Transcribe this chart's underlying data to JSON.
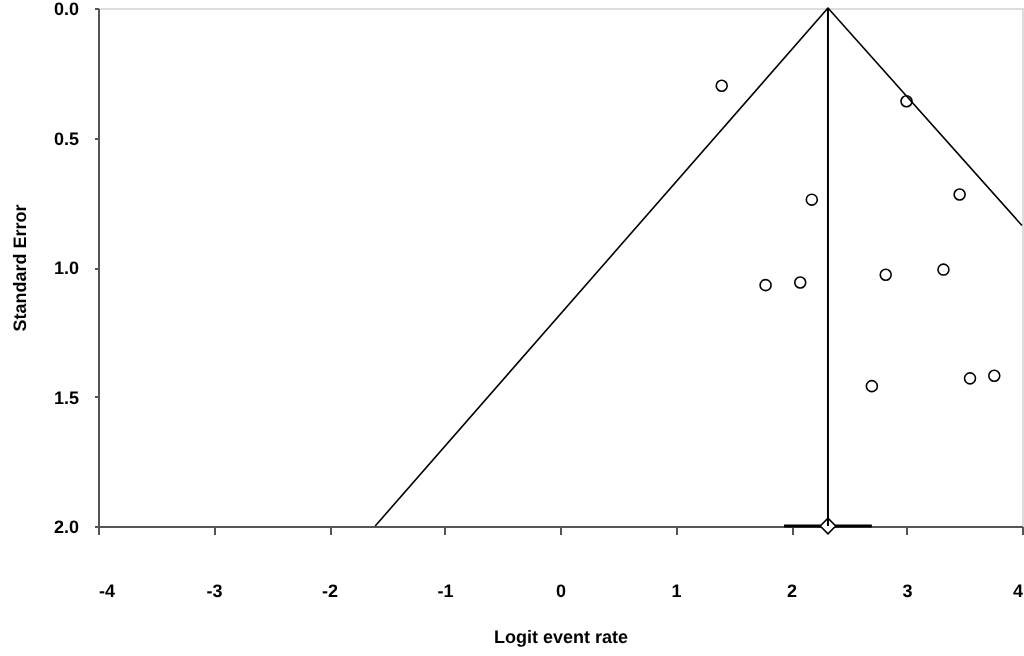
{
  "chart_data": {
    "type": "scatter",
    "xlabel": "Logit event rate",
    "ylabel": "Standard Error",
    "xlim": [
      -4,
      4
    ],
    "xticks": [
      -4,
      -3,
      -2,
      -1,
      0,
      1,
      2,
      3,
      4
    ],
    "ylim": [
      2,
      0
    ],
    "yticks": [
      {
        "value": 0,
        "label": "0.0"
      },
      {
        "value": 0.5,
        "label": "0.5"
      },
      {
        "value": 1,
        "label": "1.0"
      },
      {
        "value": 1.5,
        "label": "1.5"
      },
      {
        "value": 2,
        "label": "2.0"
      }
    ],
    "grid": false,
    "series": [
      {
        "marker": "circle",
        "color": "#000000",
        "x": [
          1.4,
          3.0,
          2.18,
          3.46,
          1.78,
          2.08,
          2.82,
          3.32,
          2.7,
          3.55,
          3.76
        ],
        "values": [
          0.3,
          0.36,
          0.74,
          0.72,
          1.07,
          1.06,
          1.03,
          1.01,
          1.46,
          1.43,
          1.42
        ]
      },
      {
        "type": "line",
        "marker": "none",
        "line_style": "solid",
        "color": "#000000",
        "x": [
          -1.6,
          2.32,
          4
        ],
        "values": [
          2,
          0,
          0.84
        ]
      },
      {
        "type": "scatter",
        "marker": "diamond",
        "color": "#000000",
        "x": [
          2.32
        ],
        "values": [
          2
        ],
        "xerrors": [
          [
            1.94,
            2.7
          ]
        ]
      }
    ],
    "ref_lines": [
      {
        "axis": "x",
        "value": 2.32,
        "color": "#000000",
        "line_style": "solid"
      }
    ]
  }
}
